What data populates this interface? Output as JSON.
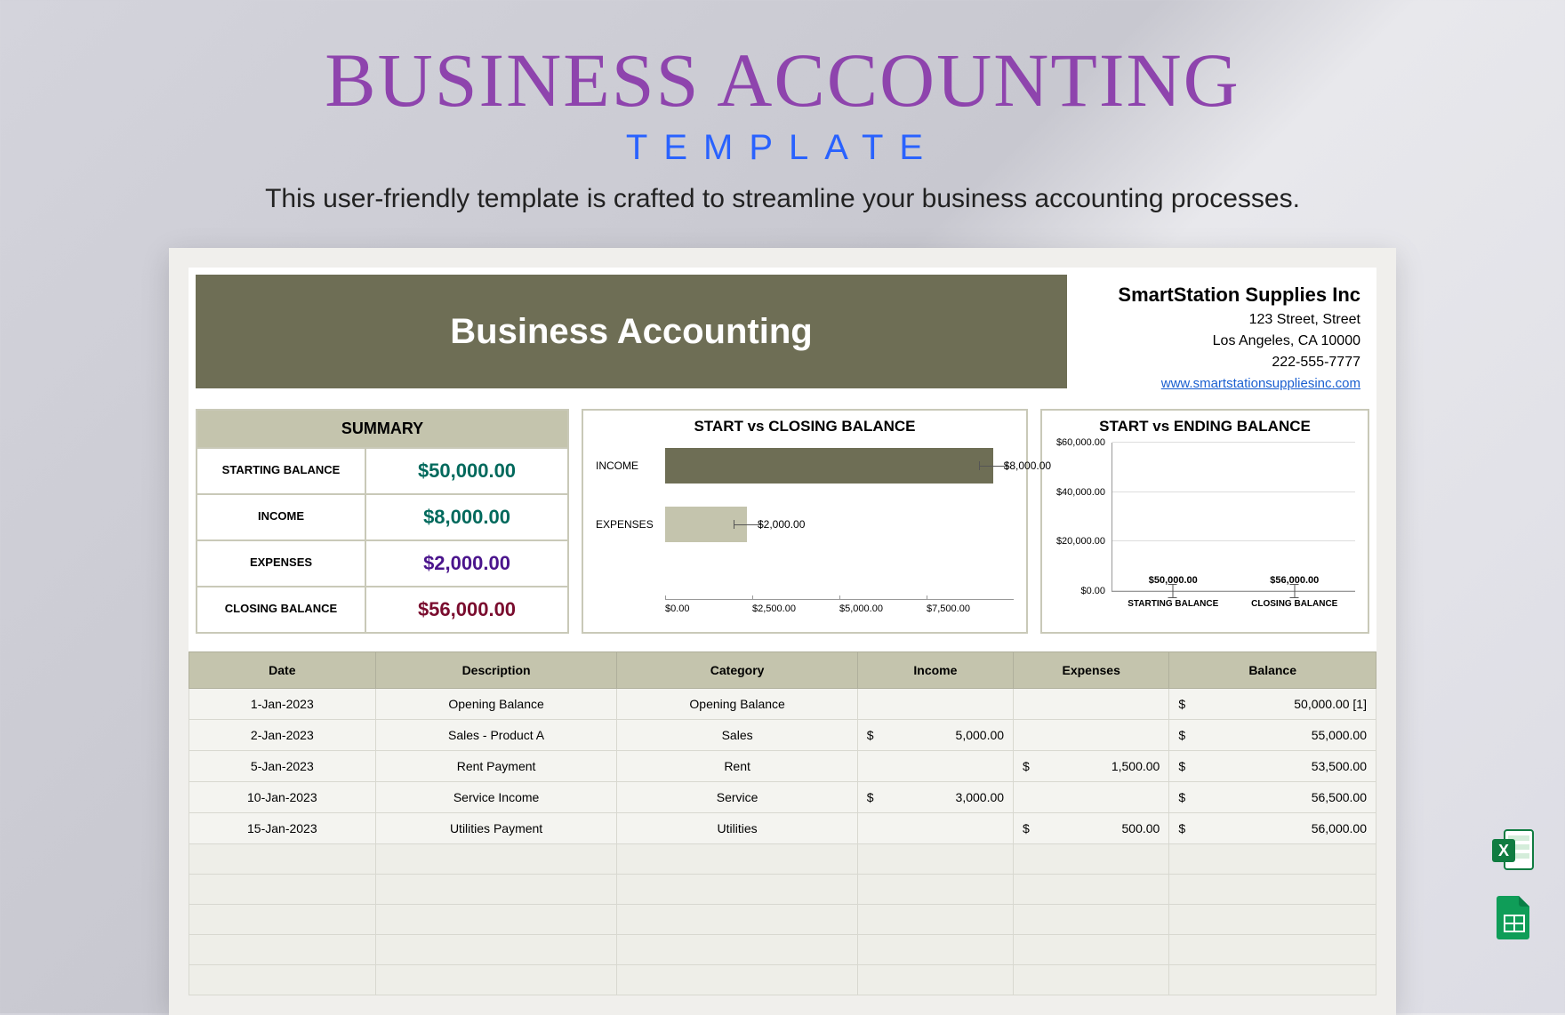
{
  "hero": {
    "title": "BUSINESS ACCOUNTING",
    "subtitle": "TEMPLATE",
    "description": "This user-friendly template is crafted to streamline your business accounting processes.",
    "title_color": "#8e44ad",
    "subtitle_color": "#2962ff"
  },
  "banner": {
    "title": "Business Accounting",
    "bg": "#6e6e55",
    "fg": "#ffffff"
  },
  "company": {
    "name": "SmartStation Supplies Inc",
    "street": "123 Street, Street",
    "city": "Los Angeles, CA 10000",
    "phone": "222-555-7777",
    "url": "www.smartstationsuppliesinc.com"
  },
  "summary": {
    "header": "SUMMARY",
    "header_bg": "#c4c4ad",
    "rows": [
      {
        "label": "STARTING BALANCE",
        "value": "$50,000.00",
        "color": "#00695c"
      },
      {
        "label": "INCOME",
        "value": "$8,000.00",
        "color": "#00695c"
      },
      {
        "label": "EXPENSES",
        "value": "$2,000.00",
        "color": "#4a148c"
      },
      {
        "label": "CLOSING BALANCE",
        "value": "$56,000.00",
        "color": "#7a0c2e"
      }
    ]
  },
  "chart1": {
    "title": "START vs CLOSING BALANCE",
    "type": "horizontal-bar",
    "categories": [
      "INCOME",
      "EXPENSES"
    ],
    "values": [
      8000,
      2000
    ],
    "value_labels": [
      "$8,000.00",
      "$2,000.00"
    ],
    "colors": [
      "#6e6e55",
      "#c4c4ad"
    ],
    "x_ticks": [
      "$0.00",
      "$2,500.00",
      "$5,000.00",
      "$7,500.00"
    ],
    "x_max": 8500
  },
  "chart2": {
    "title": "START vs ENDING BALANCE",
    "type": "vertical-bar",
    "categories": [
      "STARTING BALANCE",
      "CLOSING BALANCE"
    ],
    "values": [
      50000,
      56000
    ],
    "value_labels": [
      "$50,000.00",
      "$56,000.00"
    ],
    "colors": [
      "#6e6e55",
      "#c4c4ad"
    ],
    "y_ticks": [
      "$0.00",
      "$20,000.00",
      "$40,000.00",
      "$60,000.00"
    ],
    "y_max": 60000
  },
  "ledger": {
    "columns": [
      "Date",
      "Description",
      "Category",
      "Income",
      "Expenses",
      "Balance"
    ],
    "header_bg": "#c4c4ad",
    "rows": [
      {
        "date": "1-Jan-2023",
        "desc": "Opening Balance",
        "cat": "Opening Balance",
        "income": "",
        "expenses": "",
        "balance": "50,000.00  [1]"
      },
      {
        "date": "2-Jan-2023",
        "desc": "Sales - Product A",
        "cat": "Sales",
        "income": "5,000.00",
        "expenses": "",
        "balance": "55,000.00"
      },
      {
        "date": "5-Jan-2023",
        "desc": "Rent Payment",
        "cat": "Rent",
        "income": "",
        "expenses": "1,500.00",
        "balance": "53,500.00"
      },
      {
        "date": "10-Jan-2023",
        "desc": "Service Income",
        "cat": "Service",
        "income": "3,000.00",
        "expenses": "",
        "balance": "56,500.00"
      },
      {
        "date": "15-Jan-2023",
        "desc": "Utilities Payment",
        "cat": "Utilities",
        "income": "",
        "expenses": "500.00",
        "balance": "56,000.00"
      }
    ],
    "empty_rows": 5
  },
  "icons": {
    "excel_bg": "#107c41",
    "sheets_bg": "#0f9d58"
  }
}
